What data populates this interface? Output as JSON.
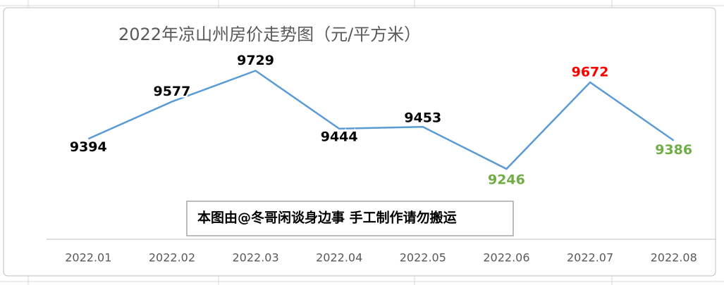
{
  "chart_data": {
    "type": "line",
    "title": "2022年凉山州房价走势图（元/平方米）",
    "annotation": "本图由@冬哥闲谈身边事 手工制作请勿搬运",
    "categories": [
      "2022.01",
      "2022.02",
      "2022.03",
      "2022.04",
      "2022.05",
      "2022.06",
      "2022.07",
      "2022.08"
    ],
    "series": [
      {
        "color": "#5b9bd5",
        "values": [
          9394,
          9577,
          9729,
          9444,
          9453,
          9246,
          9672,
          9386
        ],
        "label_colors": [
          "#000000",
          "#000000",
          "#000000",
          "#000000",
          "#000000",
          "#70ad47",
          "#ff0000",
          "#70ad47"
        ]
      }
    ],
    "ylim": [
      8900,
      9800
    ]
  }
}
